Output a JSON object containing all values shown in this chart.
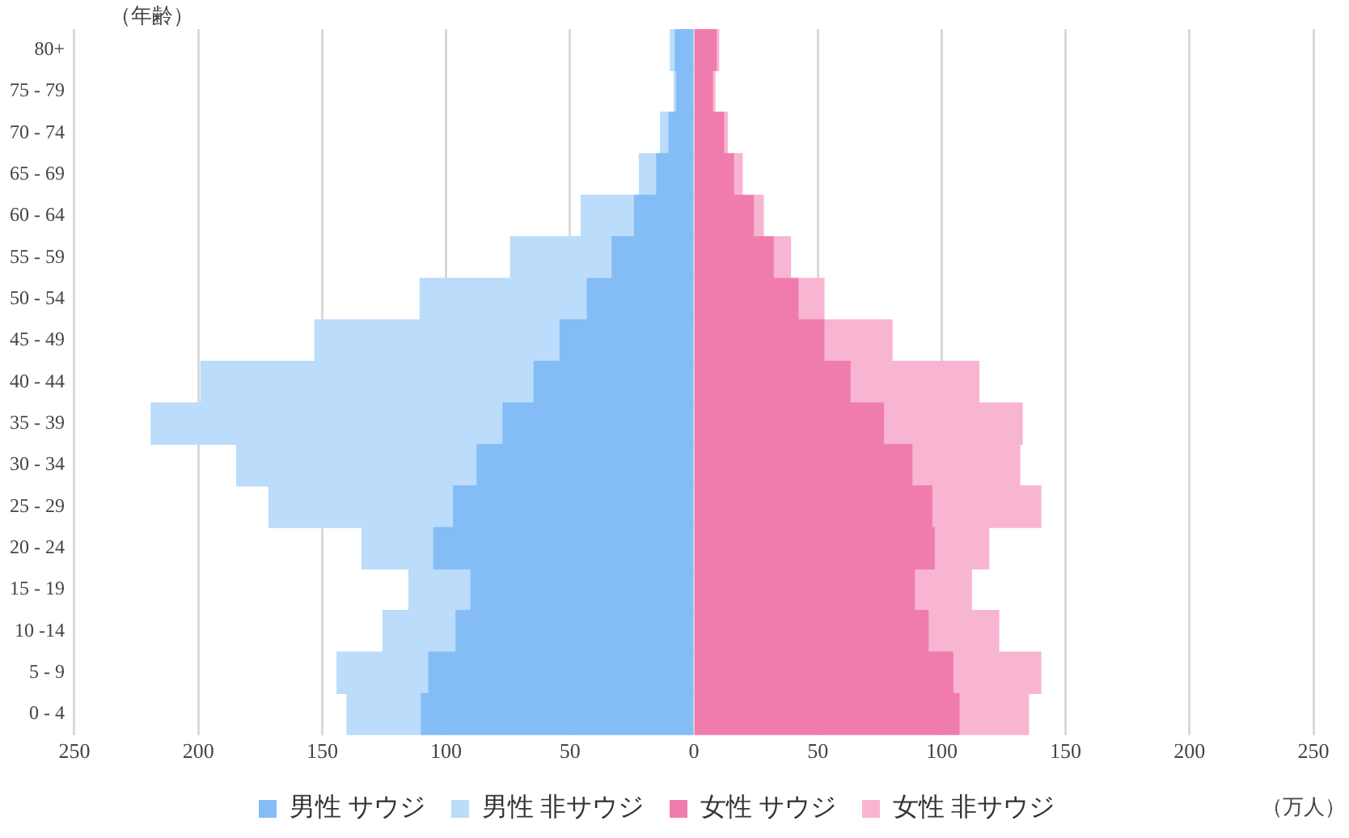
{
  "chart_data": {
    "type": "bar",
    "orientation": "horizontal",
    "stacked": true,
    "ylabel": "（年齢）",
    "xlabel": "（万人）",
    "categories": [
      "80+",
      "75 - 79",
      "70 - 74",
      "65 - 69",
      "60 - 64",
      "55 - 59",
      "50 - 54",
      "45 - 49",
      "40 - 44",
      "35 - 39",
      "30 - 34",
      "25 - 29",
      "20 - 24",
      "15 - 19",
      "10 -14",
      "5 - 9",
      "0 - 4"
    ],
    "series": [
      {
        "name": "男性 サウジ",
        "color": "#84bdf5",
        "values": [
          -7.5,
          -7,
          -10,
          -15,
          -24,
          -33,
          -43,
          -54,
          -64.5,
          -77,
          -87.5,
          -97,
          -105,
          -90,
          -96,
          -107,
          -110
        ]
      },
      {
        "name": "男性 非サウジ",
        "color": "#bbdcfa",
        "values": [
          -2,
          -1,
          -3.5,
          -7,
          -21.5,
          -41,
          -67.5,
          -99,
          -134.5,
          -142,
          -97,
          -74.5,
          -29,
          -25,
          -29.5,
          -37,
          -30
        ]
      },
      {
        "name": "女性 サウジ",
        "color": "#f07cae",
        "values": [
          9,
          7.5,
          12,
          16,
          24,
          32,
          42,
          52.5,
          63,
          76.5,
          88,
          96,
          97,
          89,
          94.5,
          104.5,
          107
        ]
      },
      {
        "name": "女性 非サウジ",
        "color": "#f8b5d2",
        "values": [
          1,
          1,
          1.5,
          3.5,
          4,
          7,
          10.5,
          27.5,
          52,
          56,
          43.5,
          44,
          22,
          23,
          28.5,
          35.5,
          28
        ]
      }
    ],
    "xlim": [
      -250,
      250
    ],
    "xticks": [
      {
        "value": -250,
        "label": "250"
      },
      {
        "value": -200,
        "label": "200"
      },
      {
        "value": -150,
        "label": "150"
      },
      {
        "value": -100,
        "label": "100"
      },
      {
        "value": -50,
        "label": "50"
      },
      0,
      50,
      100,
      150,
      200,
      250
    ],
    "grid": "x",
    "legend": "bottom"
  }
}
